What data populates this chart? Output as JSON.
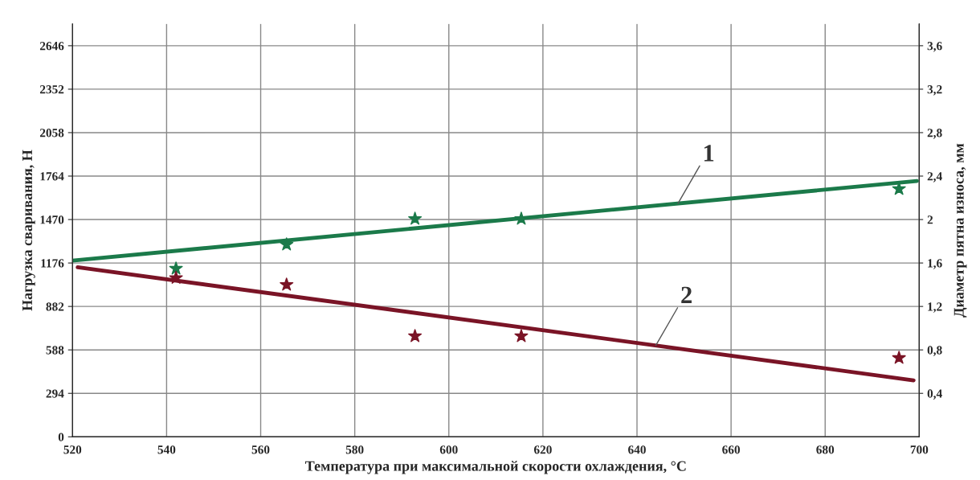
{
  "chart_data": {
    "type": "line",
    "xlabel": "Температура при максимальной скорости охлаждения, °С",
    "ylabel": "Нагрузка сваривания, Н",
    "y2label": "Диаметр пятна износа, мм",
    "series": [
      {
        "color": "#1b7a4a",
        "x": [
          520,
          699.5
        ],
        "values": [
          1192,
          1731
        ],
        "marker": "none"
      },
      {
        "type": "scatter",
        "color": "#1b7a4a",
        "x": [
          542,
          565.5,
          592.8,
          615.4,
          695.7
        ],
        "values": [
          1138,
          1301,
          1475,
          1475,
          1677
        ],
        "marker": "star"
      },
      {
        "color": "#7a1426",
        "x": [
          521.1,
          698.8
        ],
        "values": [
          1147,
          382
        ],
        "marker": "none"
      },
      {
        "type": "scatter",
        "color": "#7a1426",
        "x": [
          542,
          565.5,
          592.8,
          615.4,
          695.7
        ],
        "values": [
          1075,
          1029,
          681,
          681,
          534
        ],
        "marker": "star"
      }
    ],
    "xlim": [
      520,
      700
    ],
    "xticks": [
      520,
      540,
      560,
      580,
      600,
      620,
      640,
      660,
      680,
      700
    ],
    "ylim": [
      0,
      2793
    ],
    "yticks": [
      0,
      294,
      588,
      882,
      1176,
      1470,
      1764,
      2058,
      2352,
      2646
    ],
    "y2lim": [
      0,
      3.8
    ],
    "y2ticks": [
      {
        "value": 0.4,
        "label": "0,4"
      },
      {
        "value": 0.8,
        "label": "0,8"
      },
      {
        "value": 1.2,
        "label": "1,2"
      },
      {
        "value": 1.6,
        "label": "1,6"
      },
      {
        "value": 2,
        "label": "2"
      },
      {
        "value": 2.4,
        "label": "2,4"
      },
      {
        "value": 2.8,
        "label": "2,8"
      },
      {
        "value": 3.2,
        "label": "3,2"
      },
      {
        "value": 3.6,
        "label": "3,6"
      }
    ],
    "annotations": [
      {
        "text": "1",
        "x": 648.7,
        "y": 1578
      },
      {
        "text": "2",
        "x": 644,
        "y": 618
      }
    ],
    "grid": true,
    "legend": false
  }
}
